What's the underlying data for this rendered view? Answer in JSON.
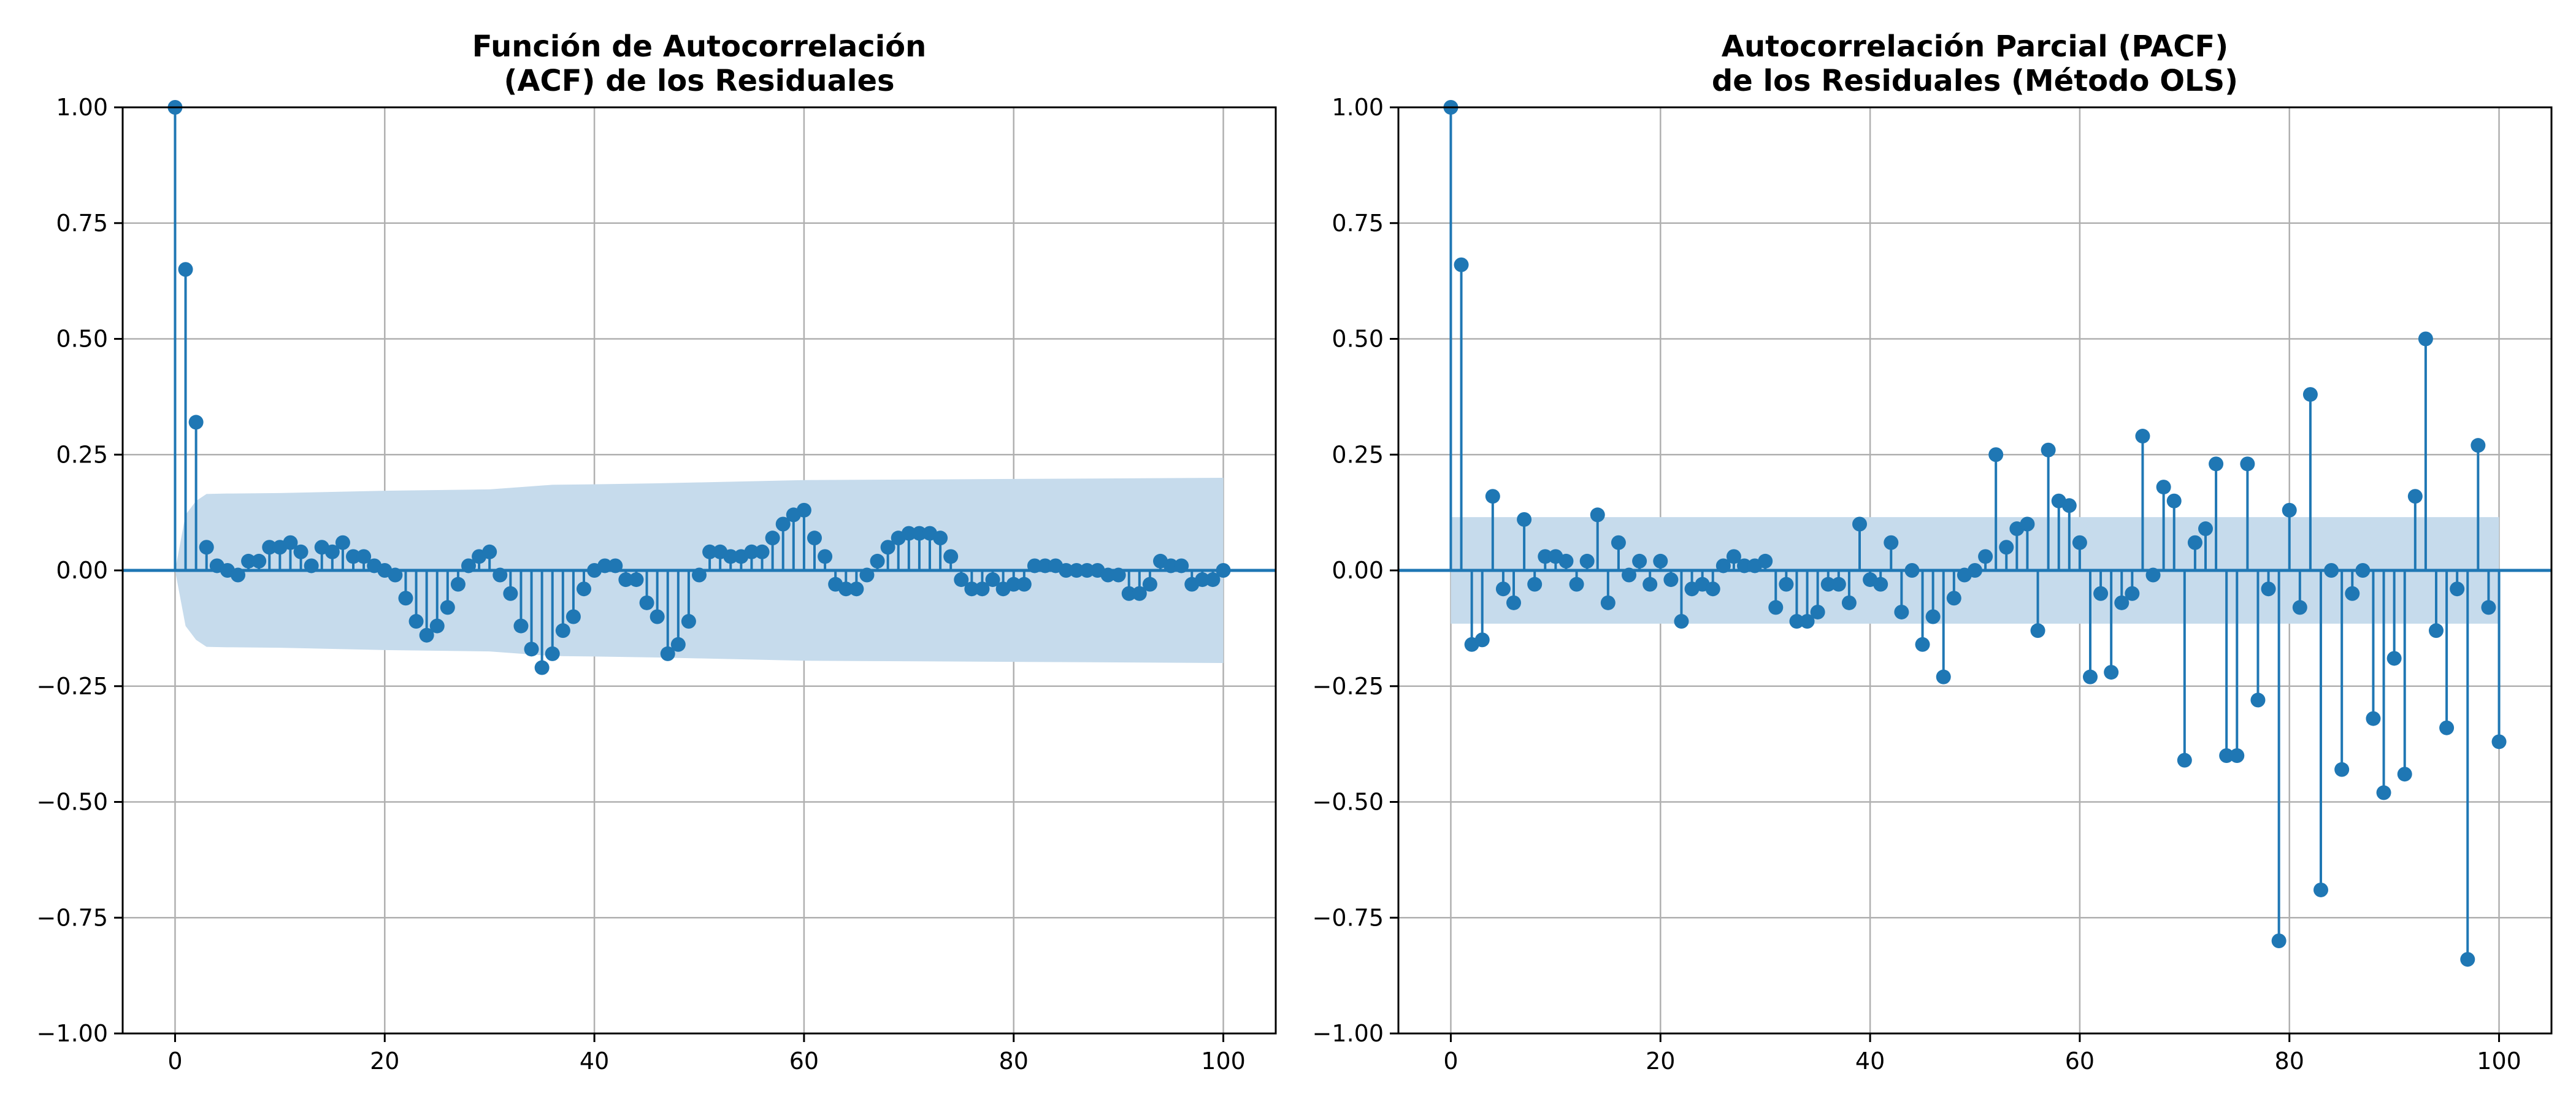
{
  "colors": {
    "series": "#1f77b4",
    "band": "#c6dbec",
    "grid": "#b0b0b0",
    "axis": "#000000"
  },
  "chart_data": [
    {
      "type": "stem",
      "title": [
        "Función de Autocorrelación",
        "(ACF) de los Residuales"
      ],
      "xlim": [
        -5,
        105
      ],
      "ylim": [
        -1.0,
        1.0
      ],
      "xticks": [
        0,
        20,
        40,
        60,
        80,
        100
      ],
      "yticks": [
        -1.0,
        -0.75,
        -0.5,
        -0.25,
        0.0,
        0.25,
        0.5,
        0.75,
        1.0
      ],
      "ytick_labels": [
        "−1.00",
        "−0.75",
        "−0.50",
        "−0.25",
        "0.00",
        "0.25",
        "0.50",
        "0.75",
        "1.00"
      ],
      "xtick_labels": [
        "0",
        "20",
        "40",
        "60",
        "80",
        "100"
      ],
      "grid": true,
      "x": [
        0,
        1,
        2,
        3,
        4,
        5,
        6,
        7,
        8,
        9,
        10,
        11,
        12,
        13,
        14,
        15,
        16,
        17,
        18,
        19,
        20,
        21,
        22,
        23,
        24,
        25,
        26,
        27,
        28,
        29,
        30,
        31,
        32,
        33,
        34,
        35,
        36,
        37,
        38,
        39,
        40,
        41,
        42,
        43,
        44,
        45,
        46,
        47,
        48,
        49,
        50,
        51,
        52,
        53,
        54,
        55,
        56,
        57,
        58,
        59,
        60,
        61,
        62,
        63,
        64,
        65,
        66,
        67,
        68,
        69,
        70,
        71,
        72,
        73,
        74,
        75,
        76,
        77,
        78,
        79,
        80,
        81,
        82,
        83,
        84,
        85,
        86,
        87,
        88,
        89,
        90,
        91,
        92,
        93,
        94,
        95,
        96,
        97,
        98,
        99,
        100
      ],
      "values": [
        1.0,
        0.65,
        0.32,
        0.05,
        0.01,
        0.0,
        -0.01,
        0.02,
        0.02,
        0.05,
        0.05,
        0.06,
        0.04,
        0.01,
        0.05,
        0.04,
        0.06,
        0.03,
        0.03,
        0.01,
        0.0,
        -0.01,
        -0.06,
        -0.11,
        -0.14,
        -0.12,
        -0.08,
        -0.03,
        0.01,
        0.03,
        0.04,
        -0.01,
        -0.05,
        -0.12,
        -0.17,
        -0.21,
        -0.18,
        -0.13,
        -0.1,
        -0.04,
        0.0,
        0.01,
        0.01,
        -0.02,
        -0.02,
        -0.07,
        -0.1,
        -0.18,
        -0.16,
        -0.11,
        -0.01,
        0.04,
        0.04,
        0.03,
        0.03,
        0.04,
        0.04,
        0.07,
        0.1,
        0.12,
        0.13,
        0.07,
        0.03,
        -0.03,
        -0.04,
        -0.04,
        -0.01,
        0.02,
        0.05,
        0.07,
        0.08,
        0.08,
        0.08,
        0.07,
        0.03,
        -0.02,
        -0.04,
        -0.04,
        -0.02,
        -0.04,
        -0.03,
        -0.03,
        0.01,
        0.01,
        0.01,
        0.0,
        0.0,
        0.0,
        0.0,
        -0.01,
        -0.01,
        -0.05,
        -0.05,
        -0.03,
        0.02,
        0.01,
        0.01,
        -0.03,
        -0.02,
        -0.02,
        0.0
      ],
      "confidence_band": {
        "x": [
          0,
          1,
          2,
          3,
          5,
          10,
          20,
          30,
          33,
          36,
          40,
          46,
          50,
          60,
          100
        ],
        "upper": [
          0.0,
          0.12,
          0.15,
          0.165,
          0.166,
          0.167,
          0.172,
          0.175,
          0.18,
          0.185,
          0.186,
          0.188,
          0.19,
          0.195,
          0.2
        ],
        "lower": [
          0.0,
          -0.12,
          -0.15,
          -0.165,
          -0.166,
          -0.167,
          -0.172,
          -0.175,
          -0.18,
          -0.185,
          -0.186,
          -0.188,
          -0.19,
          -0.195,
          -0.2
        ]
      }
    },
    {
      "type": "stem",
      "title": [
        "Autocorrelación Parcial (PACF)",
        "de los Residuales (Método OLS)"
      ],
      "xlim": [
        -5,
        105
      ],
      "ylim": [
        -1.0,
        1.0
      ],
      "xticks": [
        0,
        20,
        40,
        60,
        80,
        100
      ],
      "yticks": [
        -1.0,
        -0.75,
        -0.5,
        -0.25,
        0.0,
        0.25,
        0.5,
        0.75,
        1.0
      ],
      "ytick_labels": [
        "−1.00",
        "−0.75",
        "−0.50",
        "−0.25",
        "0.00",
        "0.25",
        "0.50",
        "0.75",
        "1.00"
      ],
      "xtick_labels": [
        "0",
        "20",
        "40",
        "60",
        "80",
        "100"
      ],
      "grid": true,
      "x": [
        0,
        1,
        2,
        3,
        4,
        5,
        6,
        7,
        8,
        9,
        10,
        11,
        12,
        13,
        14,
        15,
        16,
        17,
        18,
        19,
        20,
        21,
        22,
        23,
        24,
        25,
        26,
        27,
        28,
        29,
        30,
        31,
        32,
        33,
        34,
        35,
        36,
        37,
        38,
        39,
        40,
        41,
        42,
        43,
        44,
        45,
        46,
        47,
        48,
        49,
        50,
        51,
        52,
        53,
        54,
        55,
        56,
        57,
        58,
        59,
        60,
        61,
        62,
        63,
        64,
        65,
        66,
        67,
        68,
        69,
        70,
        71,
        72,
        73,
        74,
        75,
        76,
        77,
        78,
        79,
        80,
        81,
        82,
        83,
        84,
        85,
        86,
        87,
        88,
        89,
        90,
        91,
        92,
        93,
        94,
        95,
        96,
        97,
        98,
        99,
        100
      ],
      "values": [
        1.0,
        0.66,
        -0.16,
        -0.15,
        0.16,
        -0.04,
        -0.07,
        0.11,
        -0.03,
        0.03,
        0.03,
        0.02,
        -0.03,
        0.02,
        0.12,
        -0.07,
        0.06,
        -0.01,
        0.02,
        -0.03,
        0.02,
        -0.02,
        -0.11,
        -0.04,
        -0.03,
        -0.04,
        0.01,
        0.03,
        0.01,
        0.01,
        0.02,
        -0.08,
        -0.03,
        -0.11,
        -0.11,
        -0.09,
        -0.03,
        -0.03,
        -0.07,
        0.1,
        -0.02,
        -0.03,
        0.06,
        -0.09,
        0.0,
        -0.16,
        -0.1,
        -0.23,
        -0.06,
        -0.01,
        0.0,
        0.03,
        0.25,
        0.05,
        0.09,
        0.1,
        -0.13,
        0.26,
        0.15,
        0.14,
        0.06,
        -0.23,
        -0.05,
        -0.22,
        -0.07,
        -0.05,
        0.29,
        -0.01,
        0.18,
        0.15,
        -0.41,
        0.06,
        0.09,
        0.23,
        -0.4,
        -0.4,
        0.23,
        -0.28,
        -0.04,
        -0.8,
        0.13,
        -0.08,
        0.38,
        -0.69,
        0.0,
        -0.43,
        -0.05,
        0.0,
        -0.32,
        -0.48,
        -0.19,
        -0.44,
        0.16,
        0.5,
        -0.13,
        -0.34,
        -0.04,
        -0.84,
        0.27,
        -0.08,
        -0.37
      ],
      "confidence_band": {
        "x": [
          0,
          100
        ],
        "upper": [
          0.115,
          0.115
        ],
        "lower": [
          -0.115,
          -0.115
        ]
      }
    }
  ]
}
